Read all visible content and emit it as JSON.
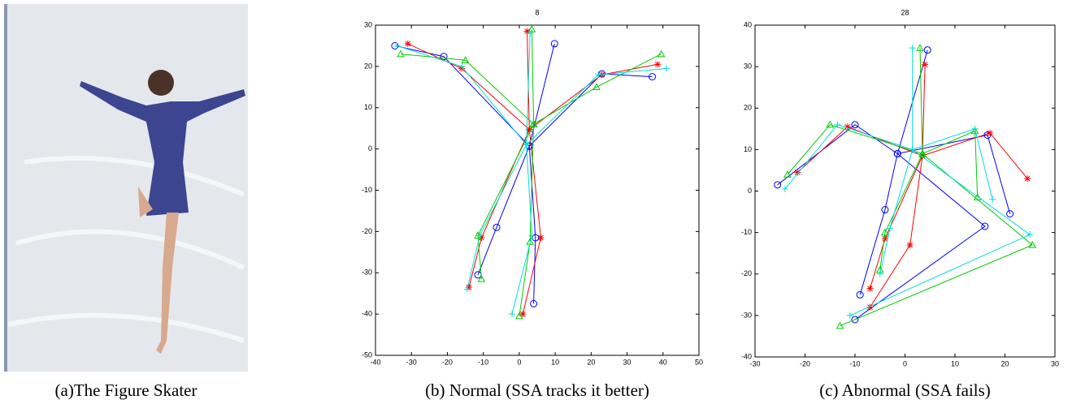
{
  "photo": {
    "caption": "(a)The Figure Skater"
  },
  "chart_data": [
    {
      "type": "scatter",
      "title": "8",
      "caption": "(b) Normal (SSA tracks it better)",
      "xlim": [
        -40,
        50
      ],
      "ylim": [
        -50,
        30
      ],
      "xticks": [
        -40,
        -30,
        -20,
        -10,
        0,
        10,
        20,
        30,
        40,
        50
      ],
      "yticks": [
        -50,
        -40,
        -30,
        -20,
        -10,
        0,
        10,
        20,
        30
      ],
      "series": [
        {
          "color": "#0000ff",
          "marker": "o",
          "x": [
            -34.6,
            -21,
            2.8,
            23,
            37,
            null,
            9.8,
            2.8,
            null,
            -11.5,
            -6.3,
            2.8,
            4.5,
            4
          ],
          "values": [
            25,
            22.4,
            0.7,
            18.2,
            17.5,
            null,
            25.5,
            0.7,
            null,
            -30.5,
            -19,
            0.7,
            -21.5,
            -37.5
          ]
        },
        {
          "color": "#ff0000",
          "marker": "*",
          "x": [
            -31,
            -16,
            2.8,
            23,
            38.5,
            null,
            2.2,
            2.8,
            null,
            -14,
            -10.5,
            2.8,
            6,
            1
          ],
          "values": [
            25.5,
            19.5,
            4.7,
            18,
            20.5,
            null,
            28.5,
            4.7,
            null,
            -33.5,
            -21.5,
            4.7,
            -21.5,
            -40
          ]
        },
        {
          "color": "#00cc00",
          "marker": "^",
          "x": [
            -33,
            -15,
            4,
            21.5,
            39.5,
            null,
            3.5,
            4,
            null,
            -10.5,
            -11.5,
            4,
            3,
            0
          ],
          "values": [
            23,
            21.5,
            6,
            15,
            23,
            null,
            29,
            6,
            null,
            -31.5,
            -21,
            6,
            -22.5,
            -40.5
          ]
        },
        {
          "color": "#00dddd",
          "marker": "+",
          "x": [
            -34,
            -16,
            2,
            22,
            41,
            null,
            3,
            2,
            null,
            -14.5,
            -11,
            2,
            3.5,
            -2
          ],
          "values": [
            25,
            20,
            1,
            18,
            19.5,
            null,
            28,
            1,
            null,
            -34,
            -21,
            1,
            -21,
            -40
          ]
        }
      ]
    },
    {
      "type": "scatter",
      "title": "28",
      "caption": "(c) Abnormal (SSA fails)",
      "xlim": [
        -30,
        30
      ],
      "ylim": [
        -40,
        40
      ],
      "xticks": [
        -30,
        -20,
        -10,
        0,
        10,
        20,
        30
      ],
      "yticks": [
        -40,
        -30,
        -20,
        -10,
        0,
        10,
        20,
        30,
        40
      ],
      "series": [
        {
          "color": "#0000ff",
          "marker": "o",
          "x": [
            -25.5,
            -10,
            -1.5,
            16.5,
            21,
            null,
            4.5,
            -1.5,
            null,
            -9,
            -4,
            -1.5,
            16,
            -10
          ],
          "values": [
            1.5,
            16,
            9,
            13.5,
            -5.5,
            null,
            34,
            9,
            null,
            -25,
            -4.5,
            9,
            -8.5,
            -31
          ]
        },
        {
          "color": "#ff0000",
          "marker": "*",
          "x": [
            -21.5,
            -11.5,
            3.5,
            17,
            24.5,
            null,
            4,
            3.5,
            null,
            -7,
            -4,
            3.5,
            1,
            -7
          ],
          "values": [
            4.5,
            15.5,
            8.5,
            14,
            3,
            null,
            30.5,
            8.5,
            null,
            -23.5,
            -11.5,
            8.5,
            -13,
            -28
          ]
        },
        {
          "color": "#00cc00",
          "marker": "^",
          "x": [
            -23.5,
            -15,
            3.5,
            14,
            14.5,
            null,
            3,
            3.5,
            null,
            -5,
            -4,
            3.5,
            25.5,
            -13
          ],
          "values": [
            4,
            16,
            9,
            14.5,
            -1.5,
            null,
            34.5,
            9,
            null,
            -19,
            -10,
            9,
            -13,
            -32.5
          ]
        },
        {
          "color": "#00dddd",
          "marker": "+",
          "x": [
            -24,
            -13.5,
            1.5,
            14,
            17.5,
            null,
            1.5,
            1.5,
            null,
            -5,
            -3,
            1.5,
            25,
            -11
          ],
          "values": [
            0.5,
            16,
            10,
            15,
            -2,
            null,
            34.5,
            10,
            null,
            -20,
            -9,
            10,
            -10.5,
            -30
          ]
        }
      ]
    }
  ]
}
